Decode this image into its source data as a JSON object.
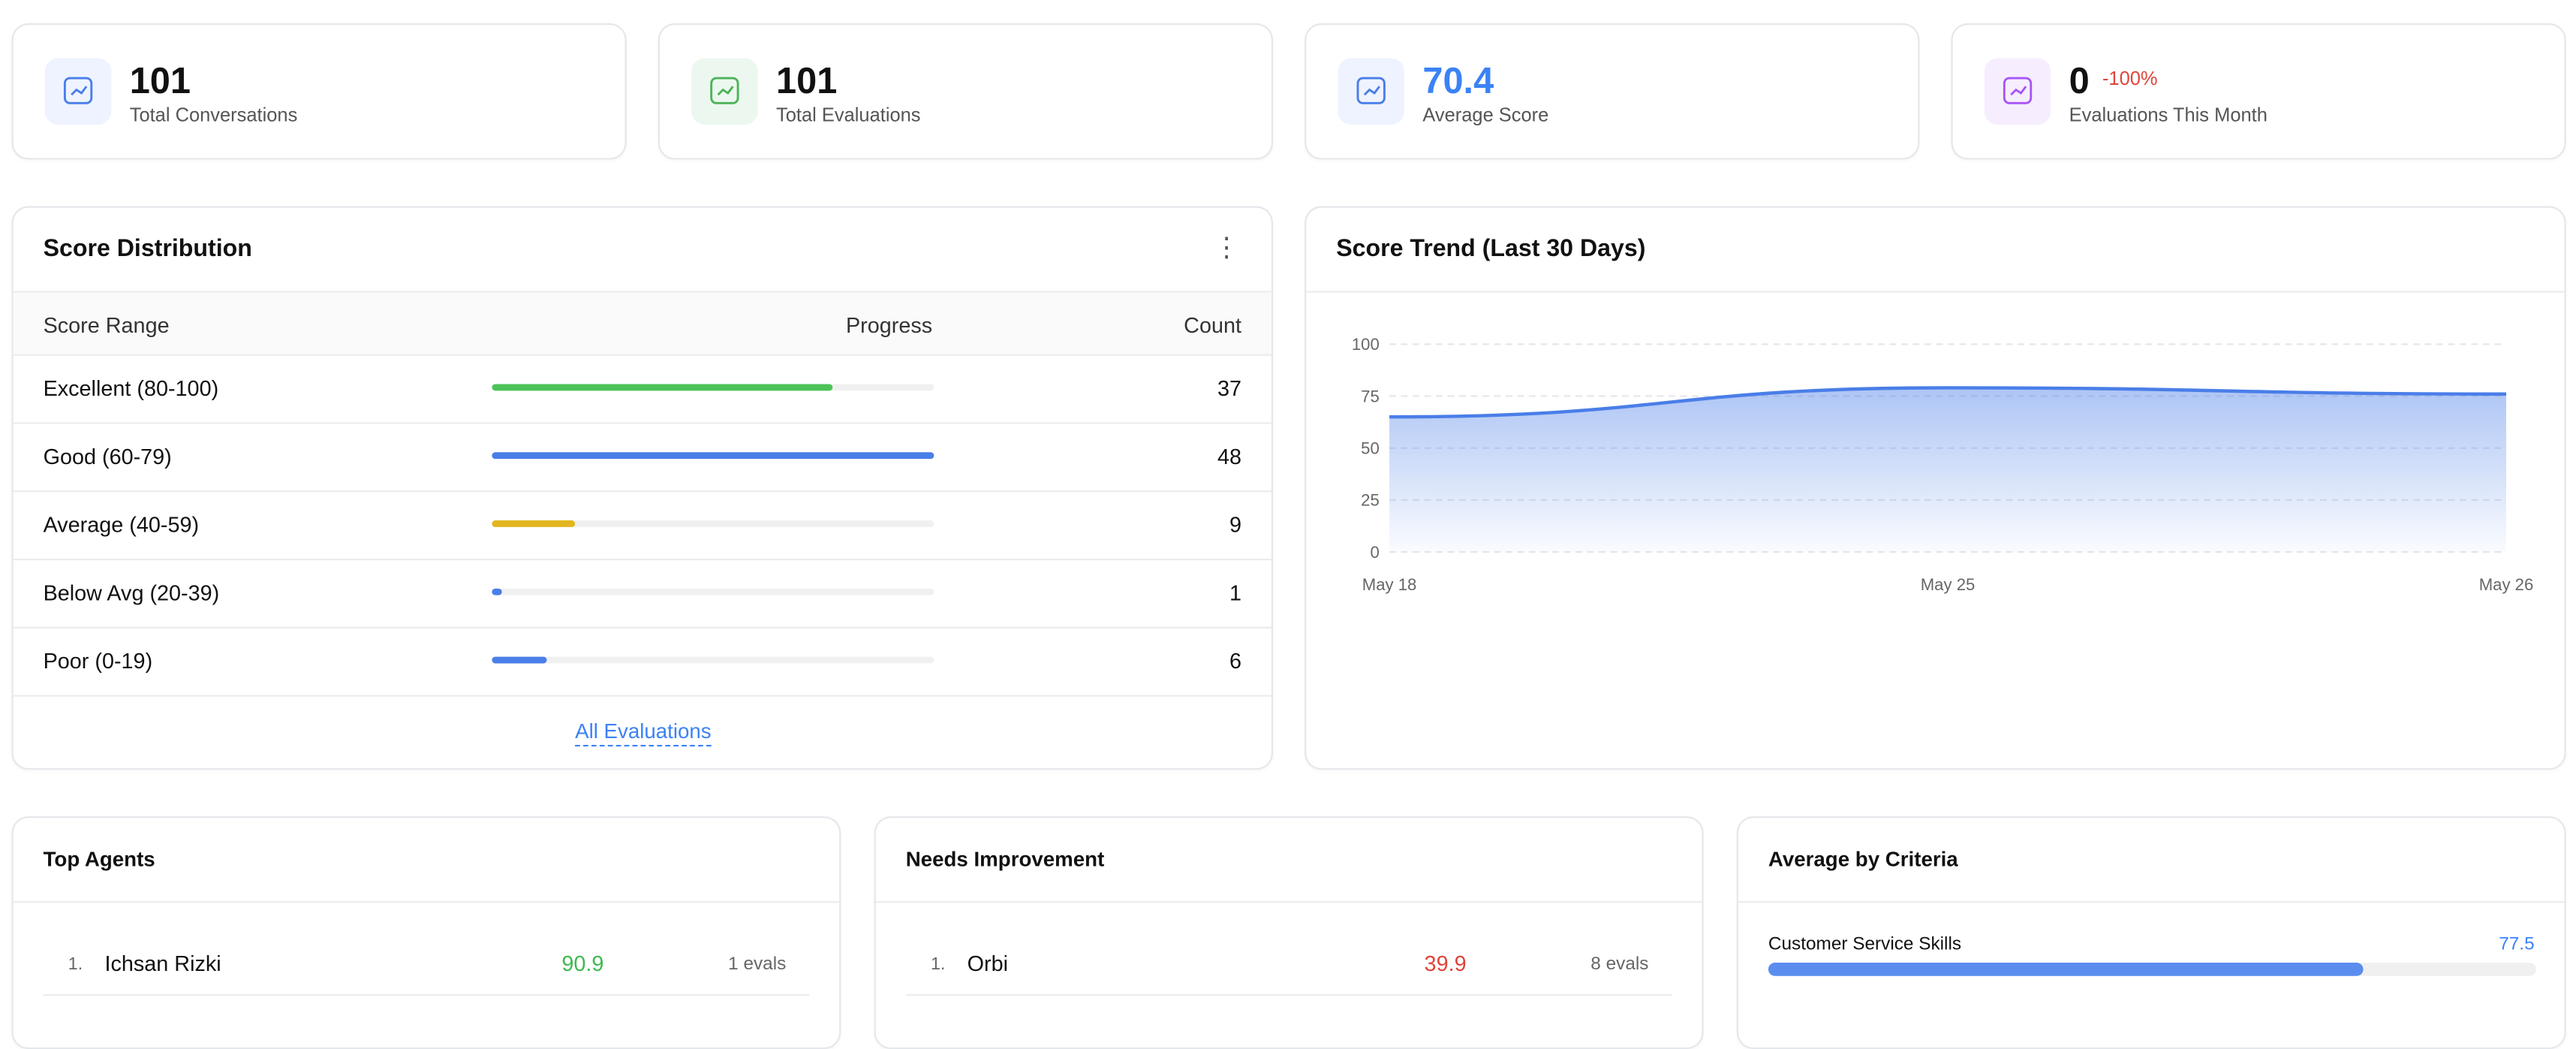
{
  "stats": [
    {
      "value": "101",
      "label": "Total Conversations"
    },
    {
      "value": "101",
      "label": "Total Evaluations"
    },
    {
      "value": "70.4",
      "label": "Average Score"
    },
    {
      "value": "0",
      "change": "-100%",
      "label": "Evaluations This Month"
    }
  ],
  "distribution": {
    "title": "Score Distribution",
    "columns": [
      "Score Range",
      "Progress",
      "Count"
    ],
    "rows": [
      {
        "label": "Excellent (80-100)",
        "count": 37,
        "color": "#4cc35a"
      },
      {
        "label": "Good (60-79)",
        "count": 48,
        "color": "#4a7ee8"
      },
      {
        "label": "Average (40-59)",
        "count": 9,
        "color": "#e2b61f"
      },
      {
        "label": "Below Avg (20-39)",
        "count": 1,
        "color": "#4a7ee8"
      },
      {
        "label": "Poor (0-19)",
        "count": 6,
        "color": "#4a7ee8"
      }
    ],
    "link": "All Evaluations"
  },
  "chart_data": {
    "type": "line",
    "title": "Score Trend (Last 30 Days)",
    "categories": [
      "May 18",
      "May 25",
      "May 26"
    ],
    "series": [
      {
        "color": "#4a7ee8",
        "values": [
          65,
          79,
          76
        ]
      }
    ],
    "ylim": [
      0,
      100
    ],
    "yticks": [
      0,
      25,
      50,
      75,
      100
    ],
    "grid": true
  },
  "top_agents": {
    "title": "Top Agents",
    "rows": [
      {
        "rank": "1.",
        "name": "Ichsan Rizki",
        "score": "90.9",
        "evals": "1 evals"
      }
    ]
  },
  "needs_improvement": {
    "title": "Needs Improvement",
    "rows": [
      {
        "rank": "1.",
        "name": "Orbi",
        "score": "39.9",
        "evals": "8 evals"
      }
    ]
  },
  "criteria": {
    "title": "Average by Criteria",
    "xlim": [
      0,
      100
    ],
    "rows": [
      {
        "label": "Customer Service Skills",
        "value": 77.5
      }
    ]
  }
}
